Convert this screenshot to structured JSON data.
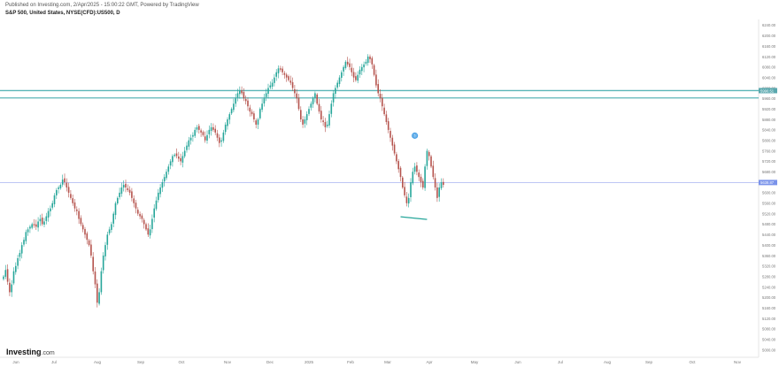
{
  "header": {
    "published": "Published on Investing.com, 2/Apr/2025 - 15:00:22 GMT, Powered by TradingView",
    "symbol": "S&P 500, United States, NYSE(CFD):US500, D"
  },
  "logo": {
    "name": "Investing",
    "suffix": ".com"
  },
  "colors": {
    "up": "#26a69a",
    "down": "#b5534d",
    "hline": "#5bb5b8",
    "current_line": "#a9b4f0",
    "label_bg_teal": "#5aa8ae",
    "label_bg_blue": "#7a93ea",
    "marker": "#4ea3e6"
  },
  "chart_data": {
    "type": "candlestick",
    "x_tick_labels": [
      "Jun",
      "Jul",
      "Aug",
      "Sep",
      "Oct",
      "Nov",
      "Dec",
      "2025",
      "Feb",
      "Mar",
      "Apr",
      "May",
      "Jun",
      "Jul",
      "Aug",
      "Sep",
      "Oct",
      "Nov"
    ],
    "y_tick_labels": [
      "6240.00",
      "6200.00",
      "6160.00",
      "6120.00",
      "6080.00",
      "6040.00",
      "6000.00",
      "5960.00",
      "5920.00",
      "5880.00",
      "5840.00",
      "5800.00",
      "5760.00",
      "5720.00",
      "5680.00",
      "5640.00",
      "5600.00",
      "5560.00",
      "5520.00",
      "5480.00",
      "5440.00",
      "5400.00",
      "5360.00",
      "5320.00",
      "5280.00",
      "5240.00",
      "5200.00",
      "5160.00",
      "5120.00",
      "5080.00",
      "5040.00",
      "5000.00"
    ],
    "ylim": [
      4985,
      6255
    ],
    "horizontal_lines": [
      {
        "value": 5990.0,
        "label": "5990.51"
      },
      {
        "value": 5962.0,
        "label": ""
      }
    ],
    "current_price": {
      "value": 5639.0,
      "label": "5638.87"
    },
    "annotation_marker": {
      "date_index": 202,
      "value": 5818.0,
      "label": "Ⓢ"
    },
    "trendline": {
      "from": [
        195,
        5508
      ],
      "to": [
        208,
        5498
      ]
    },
    "series": [
      5280,
      5305,
      5260,
      5220,
      5250,
      5300,
      5320,
      5350,
      5370,
      5400,
      5420,
      5450,
      5460,
      5470,
      5480,
      5475,
      5470,
      5490,
      5500,
      5480,
      5490,
      5510,
      5530,
      5540,
      5560,
      5590,
      5610,
      5620,
      5630,
      5650,
      5640,
      5620,
      5600,
      5580,
      5560,
      5540,
      5530,
      5500,
      5480,
      5460,
      5440,
      5420,
      5400,
      5360,
      5300,
      5250,
      5180,
      5220,
      5300,
      5360,
      5400,
      5440,
      5460,
      5480,
      5520,
      5560,
      5580,
      5600,
      5620,
      5630,
      5620,
      5610,
      5600,
      5580,
      5560,
      5540,
      5520,
      5510,
      5500,
      5480,
      5460,
      5440,
      5460,
      5500,
      5540,
      5570,
      5600,
      5620,
      5640,
      5660,
      5680,
      5700,
      5720,
      5740,
      5745,
      5740,
      5730,
      5720,
      5740,
      5760,
      5780,
      5800,
      5810,
      5820,
      5840,
      5850,
      5840,
      5830,
      5820,
      5800,
      5820,
      5840,
      5850,
      5840,
      5830,
      5810,
      5790,
      5800,
      5830,
      5860,
      5880,
      5900,
      5920,
      5940,
      5960,
      5980,
      5990,
      5980,
      5960,
      5950,
      5930,
      5910,
      5900,
      5880,
      5860,
      5880,
      5920,
      5940,
      5960,
      5980,
      6000,
      6010,
      6020,
      6040,
      6060,
      6075,
      6070,
      6060,
      6050,
      6040,
      6030,
      6020,
      6000,
      5980,
      5960,
      5920,
      5880,
      5860,
      5880,
      5900,
      5920,
      5940,
      5960,
      5980,
      5940,
      5910,
      5880,
      5870,
      5850,
      5860,
      5900,
      5940,
      5980,
      6000,
      6020,
      6040,
      6060,
      6080,
      6100,
      6090,
      6080,
      6060,
      6040,
      6030,
      6050,
      6070,
      6080,
      6090,
      6100,
      6120,
      6110,
      6090,
      6050,
      6010,
      5980,
      5960,
      5930,
      5900,
      5870,
      5840,
      5810,
      5780,
      5750,
      5720,
      5690,
      5660,
      5620,
      5590,
      5560,
      5580,
      5640,
      5680,
      5700,
      5680,
      5660,
      5640,
      5620,
      5700,
      5760,
      5740,
      5700,
      5660,
      5620,
      5580,
      5620,
      5640,
      5630
    ]
  }
}
